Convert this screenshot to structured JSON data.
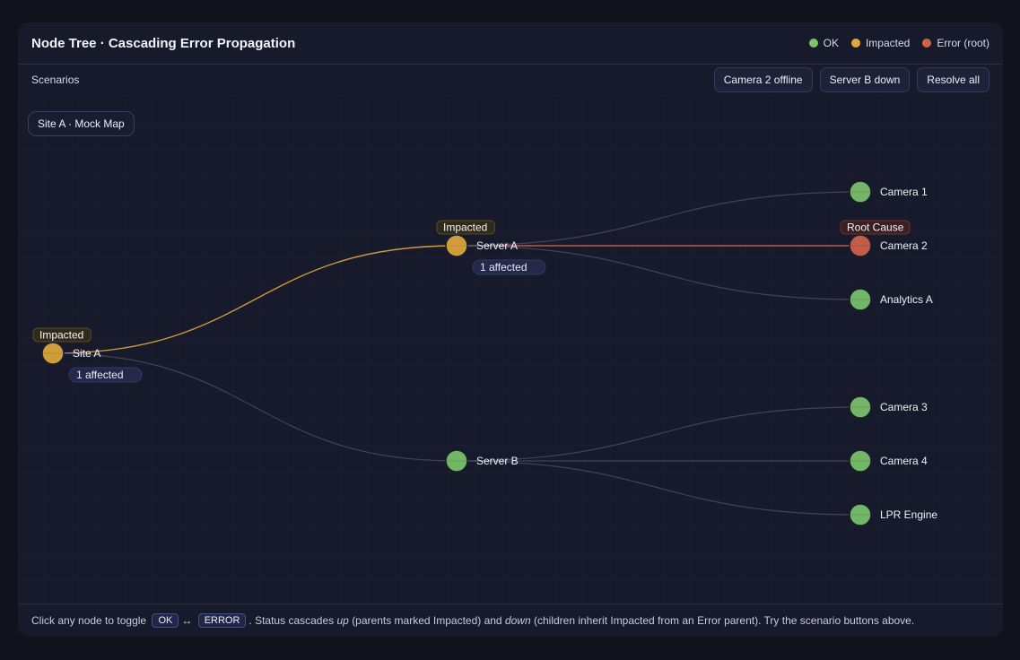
{
  "header": {
    "title": "Node Tree · Cascading Error Propagation",
    "legend": [
      {
        "label": "OK",
        "color": "#7cc36a"
      },
      {
        "label": "Impacted",
        "color": "#e0a93c"
      },
      {
        "label": "Error (root)",
        "color": "#d2624c"
      }
    ]
  },
  "scenarios": {
    "label": "Scenarios",
    "buttons": [
      "Camera 2 offline",
      "Server B down",
      "Resolve all"
    ]
  },
  "map_label": "Site A · Mock Map",
  "colors": {
    "ok": "#7cc36a",
    "impacted": "#e0a93c",
    "error": "#d2624c",
    "edge": "#4a4e66"
  },
  "nodes": [
    {
      "id": "site-a",
      "label": "Site A",
      "status": "impacted",
      "badge": "Impacted",
      "affected": "1 affected"
    },
    {
      "id": "server-a",
      "label": "Server A",
      "status": "impacted",
      "badge": "Impacted",
      "affected": "1 affected",
      "parent": "site-a"
    },
    {
      "id": "server-b",
      "label": "Server B",
      "status": "ok",
      "parent": "site-a"
    },
    {
      "id": "camera-1",
      "label": "Camera 1",
      "status": "ok",
      "parent": "server-a"
    },
    {
      "id": "camera-2",
      "label": "Camera 2",
      "status": "error",
      "badge": "Root Cause",
      "parent": "server-a"
    },
    {
      "id": "analytics-a",
      "label": "Analytics A",
      "status": "ok",
      "parent": "server-a"
    },
    {
      "id": "camera-3",
      "label": "Camera 3",
      "status": "ok",
      "parent": "server-b"
    },
    {
      "id": "camera-4",
      "label": "Camera 4",
      "status": "ok",
      "parent": "server-b"
    },
    {
      "id": "lpr-engine",
      "label": "LPR Engine",
      "status": "ok",
      "parent": "server-b"
    }
  ],
  "footer": {
    "t1": "Click any node to toggle",
    "ok": "OK",
    "arrow": "↔",
    "error": "ERROR",
    "t2": ". Status cascades",
    "up": "up",
    "t3": "(parents marked Impacted) and",
    "down": "down",
    "t4": "(children inherit Impacted from an Error parent). Try the scenario buttons above."
  }
}
